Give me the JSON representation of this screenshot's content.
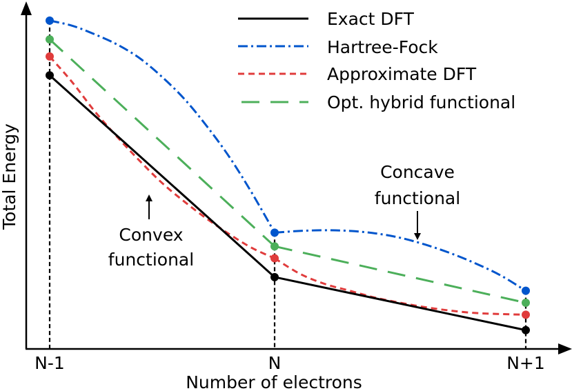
{
  "chart_data": {
    "type": "line",
    "xlabel": "Number of electrons",
    "ylabel": "Total Energy",
    "categories": [
      "N-1",
      "N",
      "N+1"
    ],
    "x": [
      0,
      1,
      2
    ],
    "ylim": [
      0,
      10
    ],
    "grid": false,
    "legend_position": "top-right",
    "series": [
      {
        "name": "Exact DFT",
        "color": "#000000",
        "style": "solid",
        "endpoints": [
          8.0,
          2.1,
          0.55
        ],
        "curves": [
          {
            "x": [
              0,
              1
            ],
            "y": [
              8.0,
              2.1
            ]
          },
          {
            "x": [
              1,
              2
            ],
            "y": [
              2.1,
              0.55
            ]
          }
        ]
      },
      {
        "name": "Hartree-Fock",
        "color": "#0055cc",
        "style": "dashdot",
        "endpoints": [
          9.6,
          3.4,
          1.7
        ],
        "curves": [
          {
            "x": [
              0,
              0.1,
              0.2,
              0.3,
              0.4,
              0.5,
              0.6,
              0.7,
              0.8,
              0.9,
              1.0
            ],
            "y": [
              9.6,
              9.45,
              9.2,
              8.9,
              8.5,
              7.95,
              7.3,
              6.5,
              5.6,
              4.55,
              3.4
            ]
          },
          {
            "x": [
              1.0,
              1.1,
              1.2,
              1.3,
              1.4,
              1.5,
              1.6,
              1.7,
              1.8,
              1.9,
              2.0
            ],
            "y": [
              3.4,
              3.45,
              3.47,
              3.45,
              3.38,
              3.25,
              3.05,
              2.8,
              2.5,
              2.15,
              1.7
            ]
          }
        ]
      },
      {
        "name": "Approximate DFT",
        "color": "#e03c3c",
        "style": "short-dash",
        "endpoints": [
          8.55,
          2.65,
          1.0
        ],
        "curves": [
          {
            "x": [
              0,
              0.1,
              0.2,
              0.3,
              0.4,
              0.5,
              0.6,
              0.7,
              0.8,
              0.9,
              1.0
            ],
            "y": [
              8.55,
              7.8,
              6.95,
              6.2,
              5.5,
              4.85,
              4.3,
              3.8,
              3.35,
              2.95,
              2.65
            ]
          },
          {
            "x": [
              1.0,
              1.1,
              1.2,
              1.3,
              1.4,
              1.5,
              1.6,
              1.7,
              1.8,
              1.9,
              2.0
            ],
            "y": [
              2.65,
              2.2,
              1.9,
              1.7,
              1.5,
              1.35,
              1.22,
              1.12,
              1.05,
              1.02,
              1.0
            ]
          }
        ]
      },
      {
        "name": "Opt. hybrid functional",
        "color": "#4caf5a",
        "style": "long-dash",
        "endpoints": [
          9.05,
          3.0,
          1.35
        ],
        "curves": [
          {
            "x": [
              0,
              1
            ],
            "y": [
              9.05,
              3.0
            ]
          },
          {
            "x": [
              1,
              2
            ],
            "y": [
              3.0,
              1.35
            ]
          }
        ]
      }
    ],
    "annotations": [
      {
        "name": "convex",
        "lines": [
          "Convex",
          "functional"
        ],
        "arrow_target": {
          "x": 0.45,
          "y": 5.0
        }
      },
      {
        "name": "concave",
        "lines": [
          "Concave",
          "functional"
        ],
        "arrow_target": {
          "x": 1.62,
          "y": 3.22
        }
      }
    ]
  }
}
